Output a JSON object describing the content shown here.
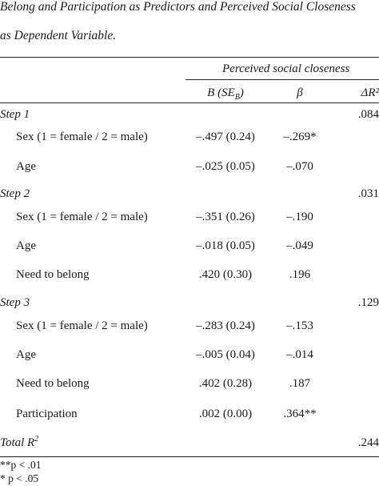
{
  "caption": {
    "line1": "Belong and Participation as Predictors and Perceived Social Closeness",
    "line2": "as Dependent Variable."
  },
  "header": {
    "group_label": "Perceived social closeness",
    "col_b": "B (SE",
    "col_b_sub": "B",
    "col_b_close": ")",
    "col_beta": "β",
    "col_r2": "ΔR²"
  },
  "steps": [
    {
      "label": "Step 1",
      "delta_r2": ".084",
      "rows": [
        {
          "predictor": "Sex (1 = female / 2 = male)",
          "b": "–.497 (0.24)",
          "beta": "–.269*"
        },
        {
          "predictor": "Age",
          "b": "–.025 (0.05)",
          "beta": "–.070"
        }
      ]
    },
    {
      "label": "Step 2",
      "delta_r2": ".031",
      "rows": [
        {
          "predictor": "Sex (1 = female / 2 = male)",
          "b": "–.351 (0.26)",
          "beta": "–.190"
        },
        {
          "predictor": "Age",
          "b": "–.018 (0.05)",
          "beta": "–.049"
        },
        {
          "predictor": "Need to belong",
          "b": ".420 (0.30)",
          "beta": ".196"
        }
      ]
    },
    {
      "label": "Step 3",
      "delta_r2": ".129",
      "rows": [
        {
          "predictor": "Sex (1 = female / 2 = male)",
          "b": "–.283 (0.24)",
          "beta": "–.153"
        },
        {
          "predictor": "Age",
          "b": "–.005 (0.04)",
          "beta": "–.014"
        },
        {
          "predictor": "Need to belong",
          "b": ".402 (0.28)",
          "beta": ".187"
        },
        {
          "predictor": "Participation",
          "b": ".002 (0.00)",
          "beta": ".364**"
        }
      ]
    }
  ],
  "total": {
    "label": "Total R",
    "label_sup": "2",
    "value": ".244"
  },
  "notes": [
    "**p < .01",
    "* p < .05"
  ]
}
